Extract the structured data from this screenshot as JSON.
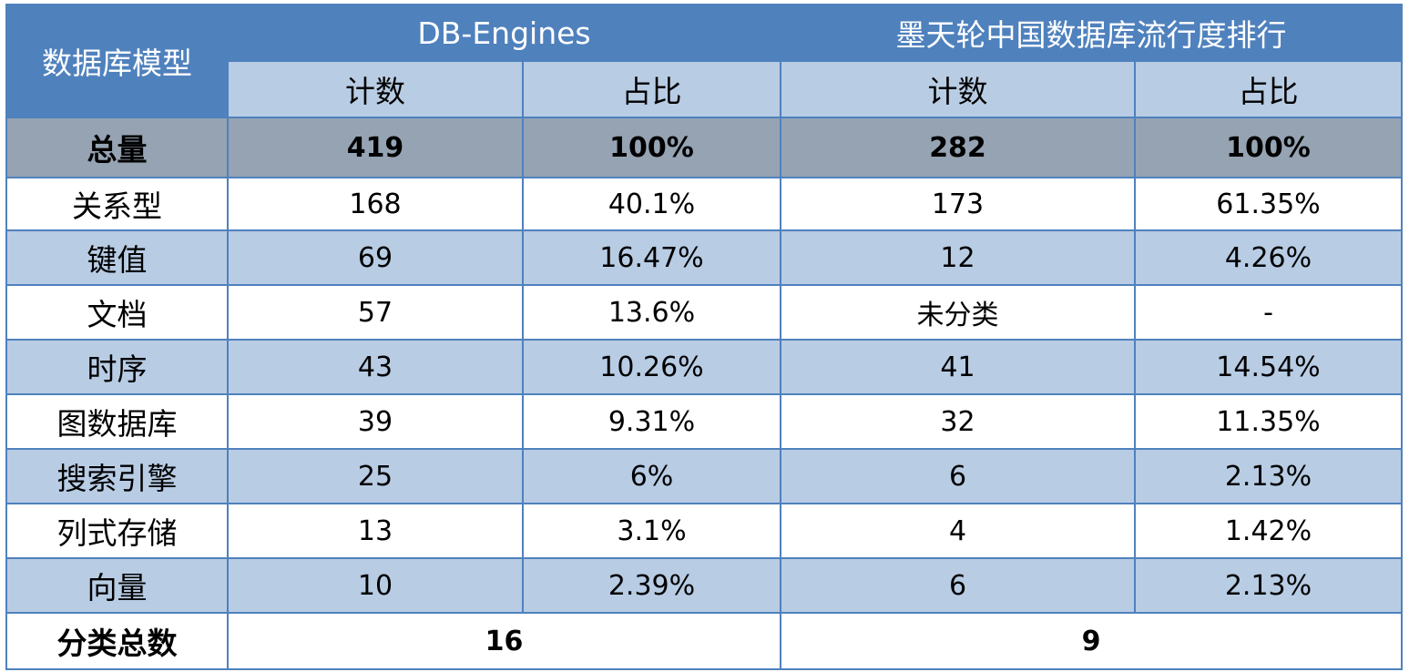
{
  "header": {
    "model_label": "数据库模型",
    "groups": [
      "DB-Engines",
      "墨天轮中国数据库流行度排行"
    ],
    "subheaders": [
      "计数",
      "占比",
      "计数",
      "占比"
    ]
  },
  "table": {
    "total": {
      "label": "总量",
      "cells": [
        "419",
        "100%",
        "282",
        "100%"
      ]
    },
    "rows": [
      [
        "关系型",
        "168",
        "40.1%",
        "173",
        "61.35%"
      ],
      [
        "键值",
        "69",
        "16.47%",
        "12",
        "4.26%"
      ],
      [
        "文档",
        "57",
        "13.6%",
        "未分类",
        "-"
      ],
      [
        "时序",
        "43",
        "10.26%",
        "41",
        "14.54%"
      ],
      [
        "图数据库",
        "39",
        "9.31%",
        "32",
        "11.35%"
      ],
      [
        "搜索引擎",
        "25",
        "6%",
        "6",
        "2.13%"
      ],
      [
        "列式存储",
        "13",
        "3.1%",
        "4",
        "1.42%"
      ],
      [
        "向量",
        "10",
        "2.39%",
        "6",
        "2.13%"
      ]
    ],
    "footer": {
      "label": "分类总数",
      "cells": [
        "16",
        "9"
      ]
    }
  }
}
